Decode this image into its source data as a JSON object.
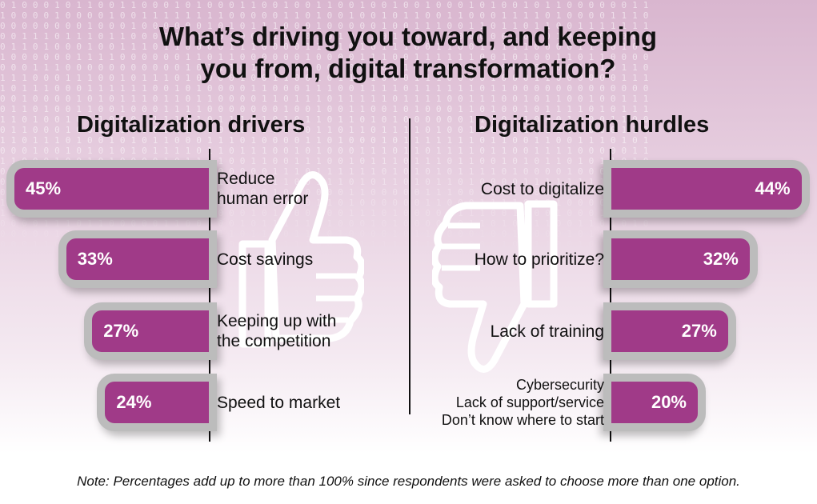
{
  "title_line1": "What’s driving you toward, and keeping",
  "title_line2": "you from, digital transformation?",
  "note": "Note: Percentages add up to more than 100% since respondents were asked to choose more than one option.",
  "colors": {
    "bar": "#a03a88",
    "bar_frame": "#bcbcbc",
    "text": "#111111"
  },
  "icons": {
    "left": "thumbs-up-icon",
    "right": "thumbs-down-icon"
  },
  "chart_data": [
    {
      "type": "bar",
      "orientation": "horizontal",
      "title": "Digitalization drivers",
      "categories": [
        [
          "Reduce",
          "human error"
        ],
        [
          "Cost savings"
        ],
        [
          "Keeping up with",
          "the competition"
        ],
        [
          "Speed to market"
        ]
      ],
      "values": [
        45,
        33,
        27,
        24
      ],
      "value_labels": [
        "45%",
        "33%",
        "27%",
        "24%"
      ],
      "unit": "%"
    },
    {
      "type": "bar",
      "orientation": "horizontal",
      "title": "Digitalization hurdles",
      "categories": [
        [
          "Cost to digitalize"
        ],
        [
          "How to prioritize?"
        ],
        [
          "Lack of training"
        ],
        [
          "Cybersecurity",
          "Lack of support/service",
          "Don’t know where to start"
        ]
      ],
      "values": [
        44,
        32,
        27,
        20
      ],
      "value_labels": [
        "44%",
        "32%",
        "27%",
        "20%"
      ],
      "unit": "%"
    }
  ]
}
